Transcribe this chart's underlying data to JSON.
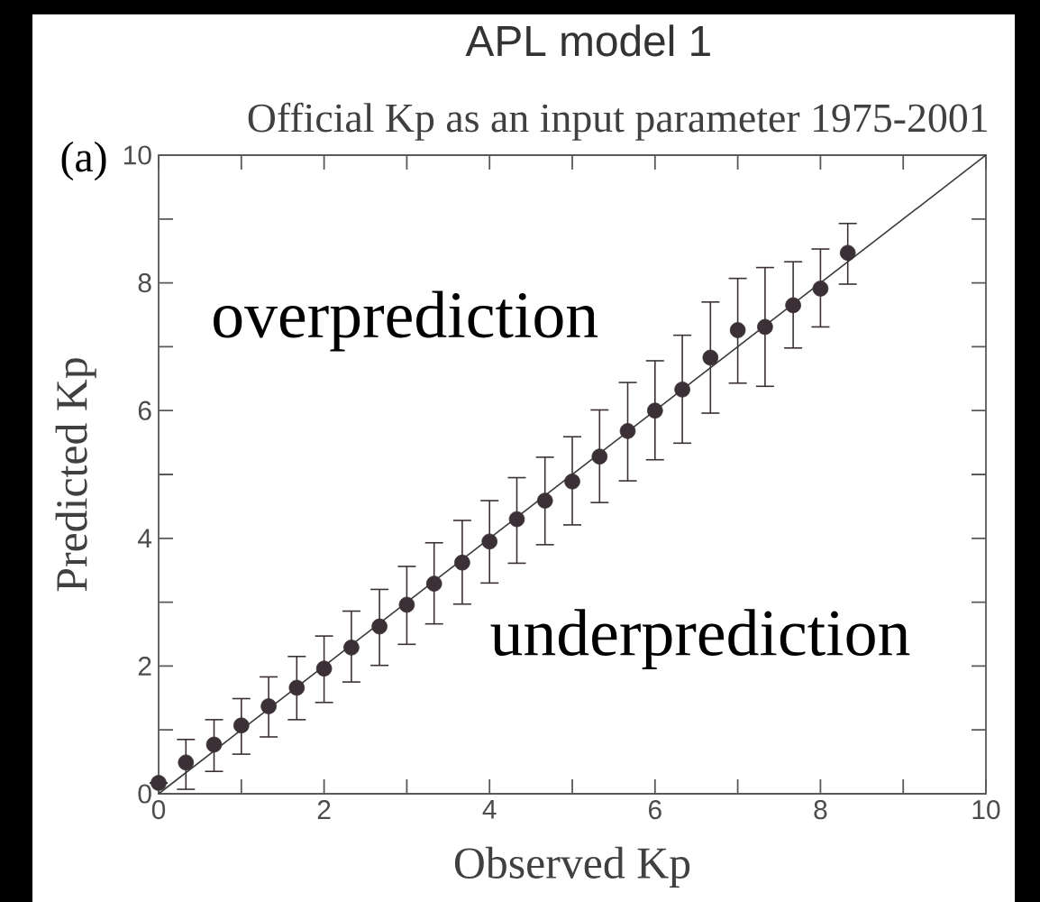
{
  "chart_data": {
    "type": "scatter",
    "title": "APL model 1",
    "subtitle": "Official Kp as an input parameter   1975-2001",
    "xlabel": "Observed Kp",
    "ylabel": "Predicted Kp",
    "annotations": [
      "(a)",
      "overprediction",
      "underprediction"
    ],
    "xlim": [
      0,
      10
    ],
    "ylim": [
      0,
      10
    ],
    "xticks": [
      0,
      {
        "value": 1,
        "label": null
      },
      2,
      {
        "value": 3,
        "label": null
      },
      4,
      {
        "value": 5,
        "label": null
      },
      6,
      {
        "value": 7,
        "label": null
      },
      8,
      {
        "value": 9,
        "label": null
      },
      10
    ],
    "yticks": [
      0,
      {
        "value": 1,
        "label": null
      },
      2,
      {
        "value": 3,
        "label": null
      },
      4,
      {
        "value": 5,
        "label": null
      },
      6,
      {
        "value": 7,
        "label": null
      },
      8,
      {
        "value": 9,
        "label": null
      },
      10
    ],
    "series": [
      {
        "color": "#3a3035",
        "marker": "circle",
        "x": [
          0,
          0.33,
          0.67,
          1.0,
          1.33,
          1.67,
          2.0,
          2.33,
          2.67,
          3.0,
          3.33,
          3.67,
          4.0,
          4.33,
          4.67,
          5.0,
          5.33,
          5.67,
          6.0,
          6.33,
          6.67,
          7.0,
          7.33,
          7.67,
          8.0,
          8.33
        ],
        "values": [
          0.17,
          0.49,
          0.77,
          1.07,
          1.37,
          1.66,
          1.96,
          2.29,
          2.62,
          2.96,
          3.29,
          3.62,
          3.95,
          4.3,
          4.59,
          4.89,
          5.28,
          5.68,
          6.0,
          6.33,
          6.83,
          7.26,
          7.31,
          7.65,
          7.91,
          8.47
        ],
        "errors": [
          null,
          [
            0.07,
            0.85
          ],
          [
            0.35,
            1.16
          ],
          [
            0.62,
            1.49
          ],
          [
            0.89,
            1.83
          ],
          [
            1.16,
            2.15
          ],
          [
            1.43,
            2.47
          ],
          [
            1.75,
            2.86
          ],
          [
            2.01,
            3.2
          ],
          [
            2.34,
            3.56
          ],
          [
            2.66,
            3.93
          ],
          [
            2.97,
            4.28
          ],
          [
            3.3,
            4.59
          ],
          [
            3.61,
            4.95
          ],
          [
            3.9,
            5.27
          ],
          [
            4.21,
            5.59
          ],
          [
            4.56,
            6.01
          ],
          [
            4.9,
            6.44
          ],
          [
            5.23,
            6.78
          ],
          [
            5.49,
            7.18
          ],
          [
            5.96,
            7.7
          ],
          [
            6.43,
            8.07
          ],
          [
            6.38,
            8.24
          ],
          [
            6.98,
            8.33
          ],
          [
            7.31,
            8.53
          ],
          [
            7.98,
            8.93
          ]
        ]
      },
      {
        "type": "line",
        "color": "#3a3a3a",
        "marker": "none",
        "x": [
          0,
          10
        ],
        "values": [
          0,
          10
        ]
      }
    ]
  }
}
